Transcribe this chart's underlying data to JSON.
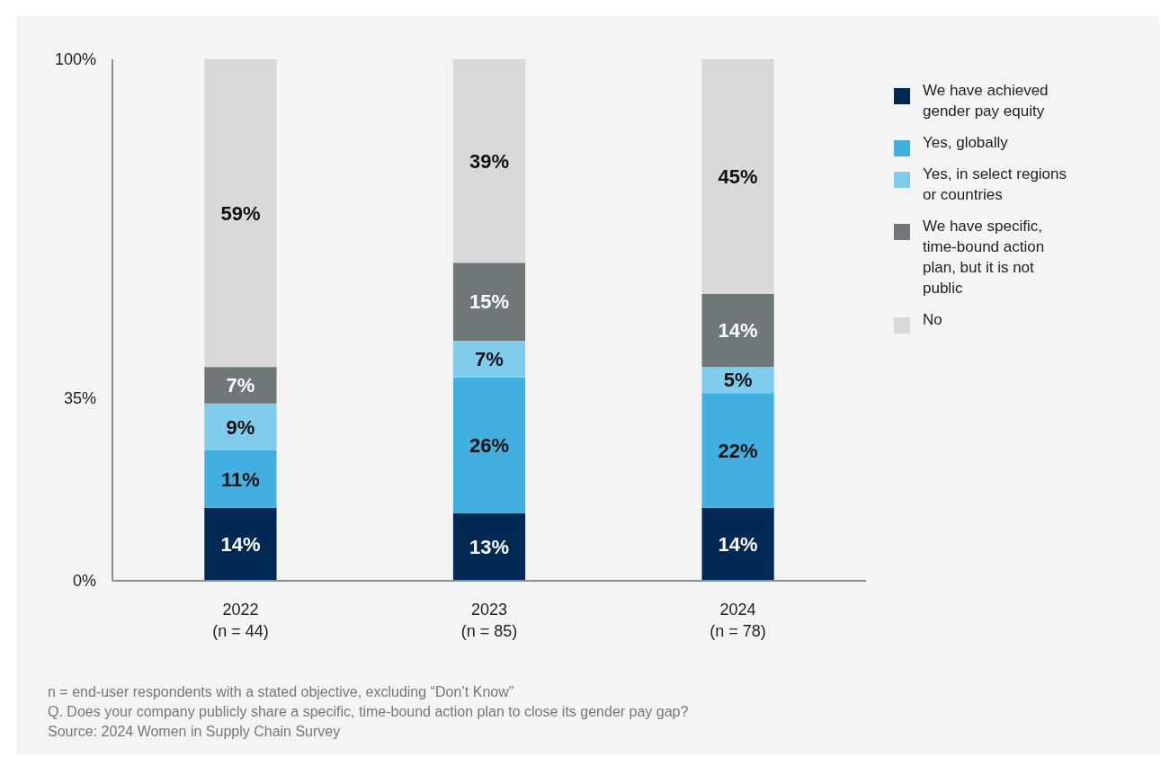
{
  "chart_data": {
    "type": "bar",
    "stacked": true,
    "categories": [
      "2022\n(n = 44)",
      "2023\n(n = 85)",
      "2024\n(n = 78)"
    ],
    "series": [
      {
        "name": "We have achieved gender pay equity",
        "color": "#002855",
        "values": [
          14,
          13,
          14
        ],
        "value_labels": [
          "14%",
          "13%",
          "14%"
        ]
      },
      {
        "name": "Yes, globally",
        "color": "#41b0e0",
        "values": [
          11,
          26,
          22
        ],
        "value_labels": [
          "11%",
          "26%",
          "22%"
        ]
      },
      {
        "name": "Yes, in select regions or countries",
        "color": "#80ccec",
        "values": [
          9,
          7,
          5
        ],
        "value_labels": [
          "9%",
          "7%",
          "5%"
        ]
      },
      {
        "name": "We have specific, time-bound action plan, but it is not public",
        "color": "#6f7778",
        "values": [
          7,
          15,
          14
        ],
        "value_labels": [
          "7%",
          "15%",
          "14%"
        ]
      },
      {
        "name": "No",
        "color": "#d9d9d9",
        "values": [
          59,
          39,
          45
        ],
        "value_labels": [
          "59%",
          "39%",
          "45%"
        ]
      }
    ],
    "ylim": [
      0,
      100
    ],
    "yticks": [
      {
        "value": 0,
        "label": "0%"
      },
      {
        "value": 35,
        "label": "35%"
      },
      {
        "value": 100,
        "label": "100%"
      }
    ],
    "grid": false,
    "legend": "right",
    "annotations": [
      "n = end-user respondents with a stated objective, excluding “Don’t Know”",
      "Q. Does your company publicly share a specific, time-bound action plan to close its gender pay gap?",
      "Source: 2024 Women in Supply Chain Survey"
    ]
  }
}
